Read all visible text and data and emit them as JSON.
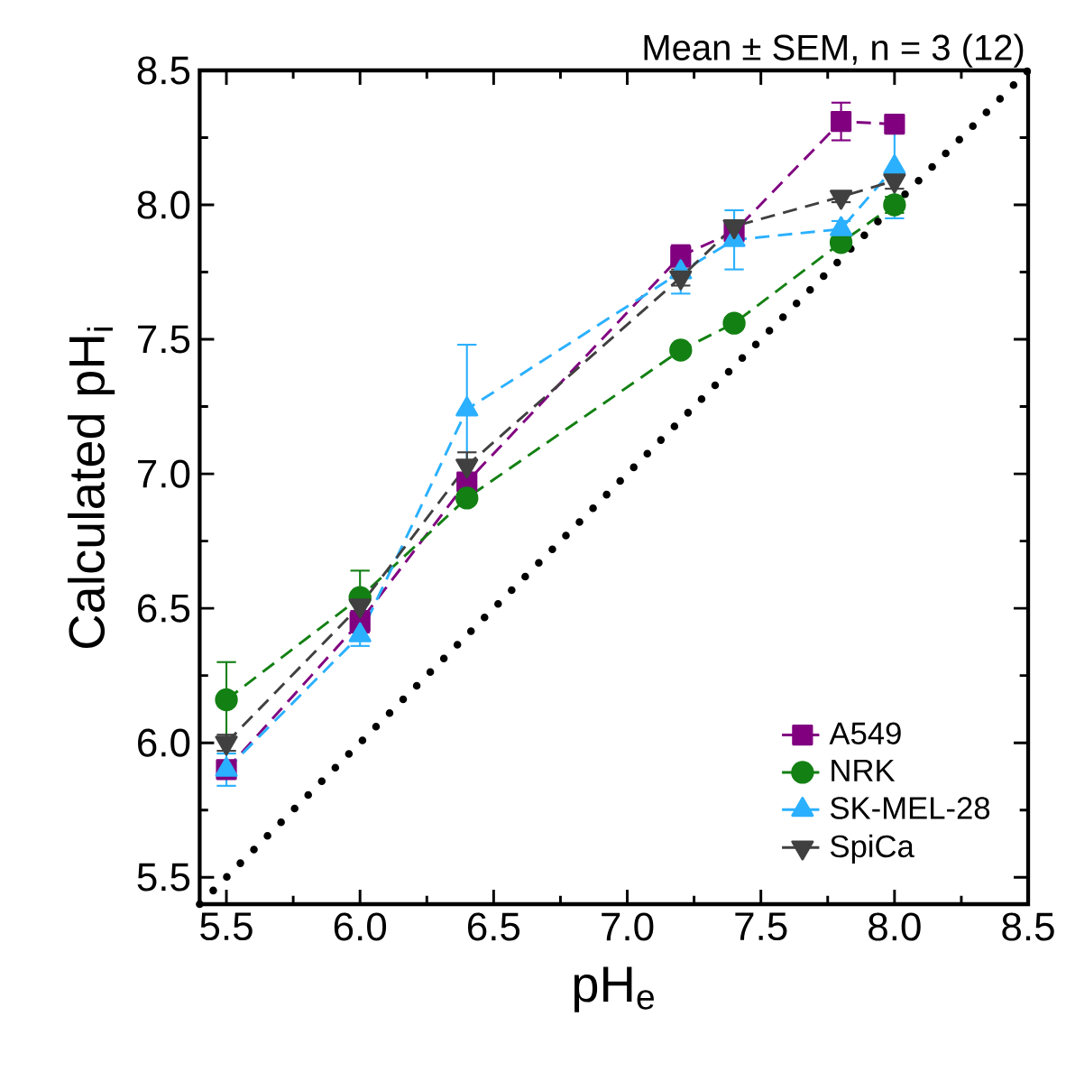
{
  "chart_data": {
    "type": "line",
    "xlabel": "pH$_{e}$",
    "ylabel": "Calculated pH$_{i}$",
    "annotations": [
      "Mean ± SEM, n = 3 (12)"
    ],
    "x": [
      5.5,
      6.0,
      6.4,
      7.2,
      7.4,
      7.8,
      8.0
    ],
    "series": [
      {
        "name": "A549",
        "color": "#800080",
        "marker": "square",
        "line_style": "dashed",
        "values": [
          5.9,
          6.45,
          6.97,
          7.81,
          7.9,
          8.31,
          8.3
        ],
        "errors": [
          0.03,
          0.04,
          0.03,
          0.04,
          null,
          0.07,
          0.02
        ]
      },
      {
        "name": "NRK",
        "color": "#138013",
        "marker": "circle",
        "line_style": "dashed",
        "values": [
          6.16,
          6.54,
          6.91,
          7.46,
          7.56,
          7.86,
          8.0
        ],
        "errors": [
          0.14,
          0.1,
          0.02,
          0.02,
          0.02,
          0.02,
          0.03
        ]
      },
      {
        "name": "SK-MEL-28",
        "color": "#2bb0ff",
        "marker": "triangle",
        "line_style": "dashed",
        "values": [
          5.9,
          6.4,
          7.24,
          7.75,
          7.87,
          7.91,
          8.14
        ],
        "errors": [
          0.06,
          0.04,
          0.24,
          0.08,
          0.11,
          0.03,
          0.19
        ]
      },
      {
        "name": "SpiCa",
        "color": "#404040",
        "marker": "triangle-down",
        "line_style": "dashed",
        "values": [
          6.0,
          6.51,
          7.03,
          7.73,
          7.92,
          8.03,
          8.09
        ],
        "errors": [
          0.03,
          0.03,
          0.05,
          0.03,
          null,
          0.02,
          0.03
        ]
      },
      {
        "color": "#000000",
        "marker": "none",
        "line_style": "dotted",
        "x": [
          5.4,
          8.5
        ],
        "values": [
          5.4,
          8.5
        ]
      }
    ],
    "xlim": [
      5.4,
      8.5
    ],
    "ylim": [
      5.4,
      8.5
    ],
    "xticks": [
      5.5,
      {
        "value": 6,
        "label": "6.0"
      },
      6.5,
      {
        "value": 7,
        "label": "7.0"
      },
      7.5,
      {
        "value": 8,
        "label": "8.0"
      },
      8.5
    ],
    "yticks": [
      5.5,
      {
        "value": 6,
        "label": "6.0"
      },
      6.5,
      {
        "value": 7,
        "label": "7.0"
      },
      7.5,
      {
        "value": 8,
        "label": "8.0"
      },
      8.5
    ],
    "legend": "bottom right"
  }
}
